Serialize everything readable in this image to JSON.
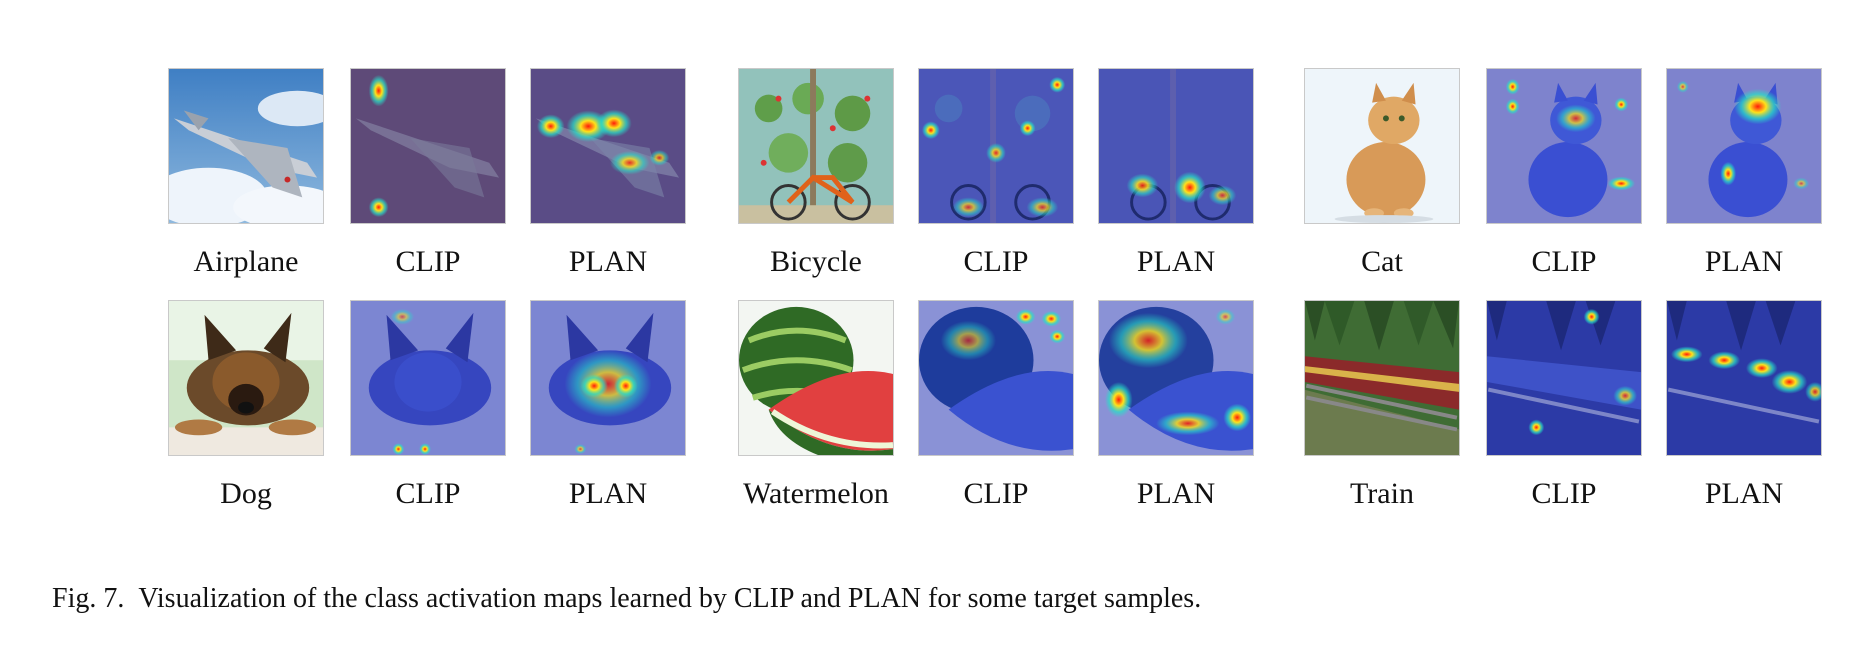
{
  "figure": {
    "caption_label": "Fig. 7.",
    "caption_text": "Visualization of the class activation maps learned by CLIP and PLAN for some target samples."
  },
  "rows": [
    {
      "groups": [
        {
          "labels": [
            "Airplane",
            "CLIP",
            "PLAN"
          ]
        },
        {
          "labels": [
            "Bicycle",
            "CLIP",
            "PLAN"
          ]
        },
        {
          "labels": [
            "Cat",
            "CLIP",
            "PLAN"
          ]
        }
      ]
    },
    {
      "groups": [
        {
          "labels": [
            "Dog",
            "CLIP",
            "PLAN"
          ]
        },
        {
          "labels": [
            "Watermelon",
            "CLIP",
            "PLAN"
          ]
        },
        {
          "labels": [
            "Train",
            "CLIP",
            "PLAN"
          ]
        }
      ]
    }
  ],
  "colors": {
    "heat_low": "#2a3bd1",
    "heat_mid": "#27e0c8",
    "heat_high": "#ff2a10",
    "heat_peak": "#ffe21a"
  }
}
